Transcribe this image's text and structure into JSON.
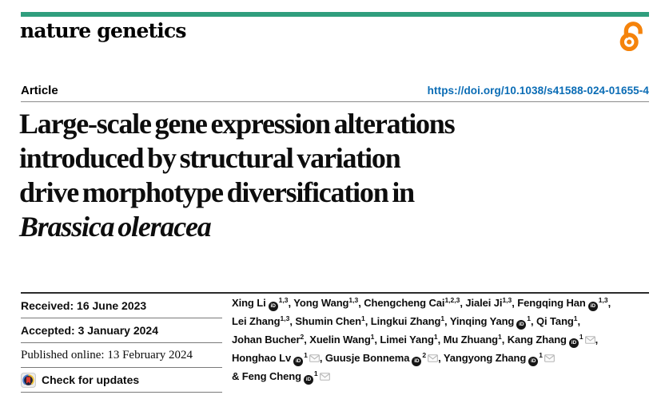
{
  "masthead": {
    "journal": "nature genetics"
  },
  "open_access": {
    "name": "open-access",
    "color": "#f5830b"
  },
  "header": {
    "article_label": "Article",
    "doi": "https://doi.org/10.1038/s41588-024-01655-4"
  },
  "title": {
    "lines": [
      "Large-scale gene expression alterations",
      "introduced by structural variation",
      "drive morphotype diversification in"
    ],
    "italic_line": "Brassica oleracea"
  },
  "meta": {
    "received": "Received: 16 June 2023",
    "accepted": "Accepted: 3 January 2024",
    "published": "Published online: 13 February 2024",
    "check_updates_label": "Check for updates"
  },
  "authors": {
    "lines": [
      [
        {
          "t": "text",
          "v": "Xing Li"
        },
        {
          "t": "orcid"
        },
        {
          "t": "sup",
          "v": "1,3"
        },
        {
          "t": "text",
          "v": ", Yong Wang"
        },
        {
          "t": "sup",
          "v": "1,3"
        },
        {
          "t": "text",
          "v": ", Chengcheng Cai"
        },
        {
          "t": "sup",
          "v": "1,2,3"
        },
        {
          "t": "text",
          "v": ", Jialei Ji"
        },
        {
          "t": "sup",
          "v": "1,3"
        },
        {
          "t": "text",
          "v": ", Fengqing Han"
        },
        {
          "t": "orcid"
        },
        {
          "t": "sup",
          "v": "1,3"
        },
        {
          "t": "text",
          "v": ","
        }
      ],
      [
        {
          "t": "text",
          "v": "Lei Zhang"
        },
        {
          "t": "sup",
          "v": "1,3"
        },
        {
          "t": "text",
          "v": ", Shumin Chen"
        },
        {
          "t": "sup",
          "v": "1"
        },
        {
          "t": "text",
          "v": ", Lingkui Zhang"
        },
        {
          "t": "sup",
          "v": "1"
        },
        {
          "t": "text",
          "v": ", Yinqing Yang"
        },
        {
          "t": "orcid"
        },
        {
          "t": "sup",
          "v": "1"
        },
        {
          "t": "text",
          "v": ", Qi Tang"
        },
        {
          "t": "sup",
          "v": "1"
        },
        {
          "t": "text",
          "v": ","
        }
      ],
      [
        {
          "t": "text",
          "v": "Johan Bucher"
        },
        {
          "t": "sup",
          "v": "2"
        },
        {
          "t": "text",
          "v": ", Xuelin Wang"
        },
        {
          "t": "sup",
          "v": "1"
        },
        {
          "t": "text",
          "v": ", Limei Yang"
        },
        {
          "t": "sup",
          "v": "1"
        },
        {
          "t": "text",
          "v": ", Mu Zhuang"
        },
        {
          "t": "sup",
          "v": "1"
        },
        {
          "t": "text",
          "v": ", Kang Zhang"
        },
        {
          "t": "orcid"
        },
        {
          "t": "sup",
          "v": "1"
        },
        {
          "t": "mail"
        },
        {
          "t": "text",
          "v": ","
        }
      ],
      [
        {
          "t": "text",
          "v": "Honghao Lv"
        },
        {
          "t": "orcid"
        },
        {
          "t": "sup",
          "v": "1"
        },
        {
          "t": "mail"
        },
        {
          "t": "text",
          "v": ", Guusje Bonnema"
        },
        {
          "t": "orcid"
        },
        {
          "t": "sup",
          "v": "2"
        },
        {
          "t": "mail"
        },
        {
          "t": "text",
          "v": ", Yangyong Zhang"
        },
        {
          "t": "orcid"
        },
        {
          "t": "sup",
          "v": "1"
        },
        {
          "t": "mail"
        }
      ],
      [
        {
          "t": "text",
          "v": "& Feng Cheng"
        },
        {
          "t": "orcid"
        },
        {
          "t": "sup",
          "v": "1"
        },
        {
          "t": "mail"
        }
      ]
    ],
    "orcid_label": "iD"
  },
  "colors": {
    "accent_green": "#2f9e7d",
    "link_blue": "#0a6cb5",
    "oa_orange": "#f5830b"
  }
}
